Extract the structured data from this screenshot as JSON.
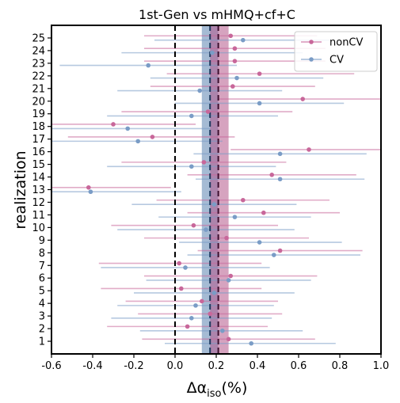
{
  "chart_data": {
    "type": "scatter",
    "title": "1st-Gen vs mHMQ+cf+C",
    "xlabel_main": "Δα",
    "xlabel_sub": "iso",
    "xlabel_unit": "(%)",
    "ylabel": "realization",
    "xlim": [
      -0.6,
      1.0
    ],
    "ylim": [
      0,
      26
    ],
    "x_ticks": [
      "-0.6",
      "-0.4",
      "-0.2",
      "0.0",
      "0.2",
      "0.4",
      "0.6",
      "0.8",
      "1.0"
    ],
    "y_ticks": [
      "1",
      "2",
      "3",
      "4",
      "5",
      "6",
      "7",
      "8",
      "9",
      "10",
      "11",
      "12",
      "13",
      "14",
      "15",
      "16",
      "17",
      "18",
      "19",
      "20",
      "21",
      "22",
      "23",
      "24",
      "25"
    ],
    "vlines": [
      {
        "x": 0.0,
        "color": "#000000",
        "style": "dashed"
      },
      {
        "x": 0.17,
        "color": "#1f3a5f",
        "style": "dashed"
      },
      {
        "x": 0.21,
        "color": "#3d1030",
        "style": "dashed"
      }
    ],
    "bands": [
      {
        "series": "CV",
        "x0": 0.13,
        "x1": 0.21,
        "color": "#5b84b1"
      },
      {
        "series": "nonCV",
        "x0": 0.17,
        "x1": 0.26,
        "color": "#b5578a"
      }
    ],
    "legend_position": "top-right",
    "series": [
      {
        "name": "nonCV",
        "color": "#c8679a",
        "offset": 0.17,
        "points": [
          {
            "y": 1,
            "x": 0.26,
            "lo": -0.16,
            "hi": 0.68
          },
          {
            "y": 2,
            "x": 0.06,
            "lo": -0.33,
            "hi": 0.45
          },
          {
            "y": 3,
            "x": 0.17,
            "lo": -0.18,
            "hi": 0.52
          },
          {
            "y": 4,
            "x": 0.13,
            "lo": -0.24,
            "hi": 0.5
          },
          {
            "y": 5,
            "x": 0.03,
            "lo": -0.36,
            "hi": 0.42
          },
          {
            "y": 6,
            "x": 0.27,
            "lo": -0.15,
            "hi": 0.69
          },
          {
            "y": 7,
            "x": 0.02,
            "lo": -0.37,
            "hi": 0.42
          },
          {
            "y": 8,
            "x": 0.51,
            "lo": 0.11,
            "hi": 0.91
          },
          {
            "y": 9,
            "x": 0.25,
            "lo": -0.15,
            "hi": 0.65
          },
          {
            "y": 10,
            "x": 0.09,
            "lo": -0.31,
            "hi": 0.5
          },
          {
            "y": 11,
            "x": 0.43,
            "lo": 0.06,
            "hi": 0.8
          },
          {
            "y": 12,
            "x": 0.33,
            "lo": -0.09,
            "hi": 0.75
          },
          {
            "y": 13,
            "x": -0.42,
            "lo": -0.6,
            "hi": -0.02
          },
          {
            "y": 14,
            "x": 0.47,
            "lo": 0.06,
            "hi": 0.88
          },
          {
            "y": 15,
            "x": 0.14,
            "lo": -0.26,
            "hi": 0.54
          },
          {
            "y": 16,
            "x": 0.65,
            "lo": 0.27,
            "hi": 1.0
          },
          {
            "y": 17,
            "x": -0.11,
            "lo": -0.52,
            "hi": 0.29
          },
          {
            "y": 18,
            "x": -0.3,
            "lo": -0.6,
            "hi": 0.1
          },
          {
            "y": 19,
            "x": 0.16,
            "lo": -0.26,
            "hi": 0.57
          },
          {
            "y": 20,
            "x": 0.62,
            "lo": 0.21,
            "hi": 1.0
          },
          {
            "y": 21,
            "x": 0.28,
            "lo": -0.12,
            "hi": 0.68
          },
          {
            "y": 22,
            "x": 0.41,
            "lo": -0.04,
            "hi": 0.87
          },
          {
            "y": 23,
            "x": 0.29,
            "lo": -0.15,
            "hi": 0.73
          },
          {
            "y": 24,
            "x": 0.29,
            "lo": -0.15,
            "hi": 0.73
          },
          {
            "y": 25,
            "x": 0.27,
            "lo": -0.15,
            "hi": 0.69
          }
        ]
      },
      {
        "name": "CV",
        "color": "#7a9cc6",
        "offset": -0.17,
        "points": [
          {
            "y": 1,
            "x": 0.37,
            "lo": -0.05,
            "hi": 0.78
          },
          {
            "y": 2,
            "x": 0.23,
            "lo": -0.17,
            "hi": 0.62
          },
          {
            "y": 3,
            "x": 0.08,
            "lo": -0.31,
            "hi": 0.47
          },
          {
            "y": 4,
            "x": 0.1,
            "lo": -0.28,
            "hi": 0.48
          },
          {
            "y": 5,
            "x": 0.19,
            "lo": -0.2,
            "hi": 0.58
          },
          {
            "y": 6,
            "x": 0.26,
            "lo": -0.14,
            "hi": 0.66
          },
          {
            "y": 7,
            "x": 0.05,
            "lo": -0.36,
            "hi": 0.46
          },
          {
            "y": 8,
            "x": 0.48,
            "lo": 0.06,
            "hi": 0.9
          },
          {
            "y": 9,
            "x": 0.41,
            "lo": 0.02,
            "hi": 0.81
          },
          {
            "y": 10,
            "x": 0.15,
            "lo": -0.28,
            "hi": 0.58
          },
          {
            "y": 11,
            "x": 0.29,
            "lo": -0.08,
            "hi": 0.66
          },
          {
            "y": 12,
            "x": 0.19,
            "lo": -0.21,
            "hi": 0.59
          },
          {
            "y": 13,
            "x": -0.41,
            "lo": -0.6,
            "hi": 0.03
          },
          {
            "y": 14,
            "x": 0.51,
            "lo": 0.1,
            "hi": 0.92
          },
          {
            "y": 15,
            "x": 0.08,
            "lo": -0.33,
            "hi": 0.49
          },
          {
            "y": 16,
            "x": 0.51,
            "lo": 0.09,
            "hi": 0.93
          },
          {
            "y": 17,
            "x": -0.18,
            "lo": -0.6,
            "hi": 0.23
          },
          {
            "y": 18,
            "x": -0.23,
            "lo": -0.6,
            "hi": 0.17
          },
          {
            "y": 19,
            "x": 0.08,
            "lo": -0.33,
            "hi": 0.5
          },
          {
            "y": 20,
            "x": 0.41,
            "lo": 0.0,
            "hi": 0.82
          },
          {
            "y": 21,
            "x": 0.12,
            "lo": -0.28,
            "hi": 0.52
          },
          {
            "y": 22,
            "x": 0.3,
            "lo": -0.12,
            "hi": 0.72
          },
          {
            "y": 23,
            "x": -0.13,
            "lo": -0.56,
            "hi": 0.3
          },
          {
            "y": 24,
            "x": 0.18,
            "lo": -0.26,
            "hi": 0.62
          },
          {
            "y": 25,
            "x": 0.33,
            "lo": -0.1,
            "hi": 0.75
          }
        ]
      }
    ]
  }
}
